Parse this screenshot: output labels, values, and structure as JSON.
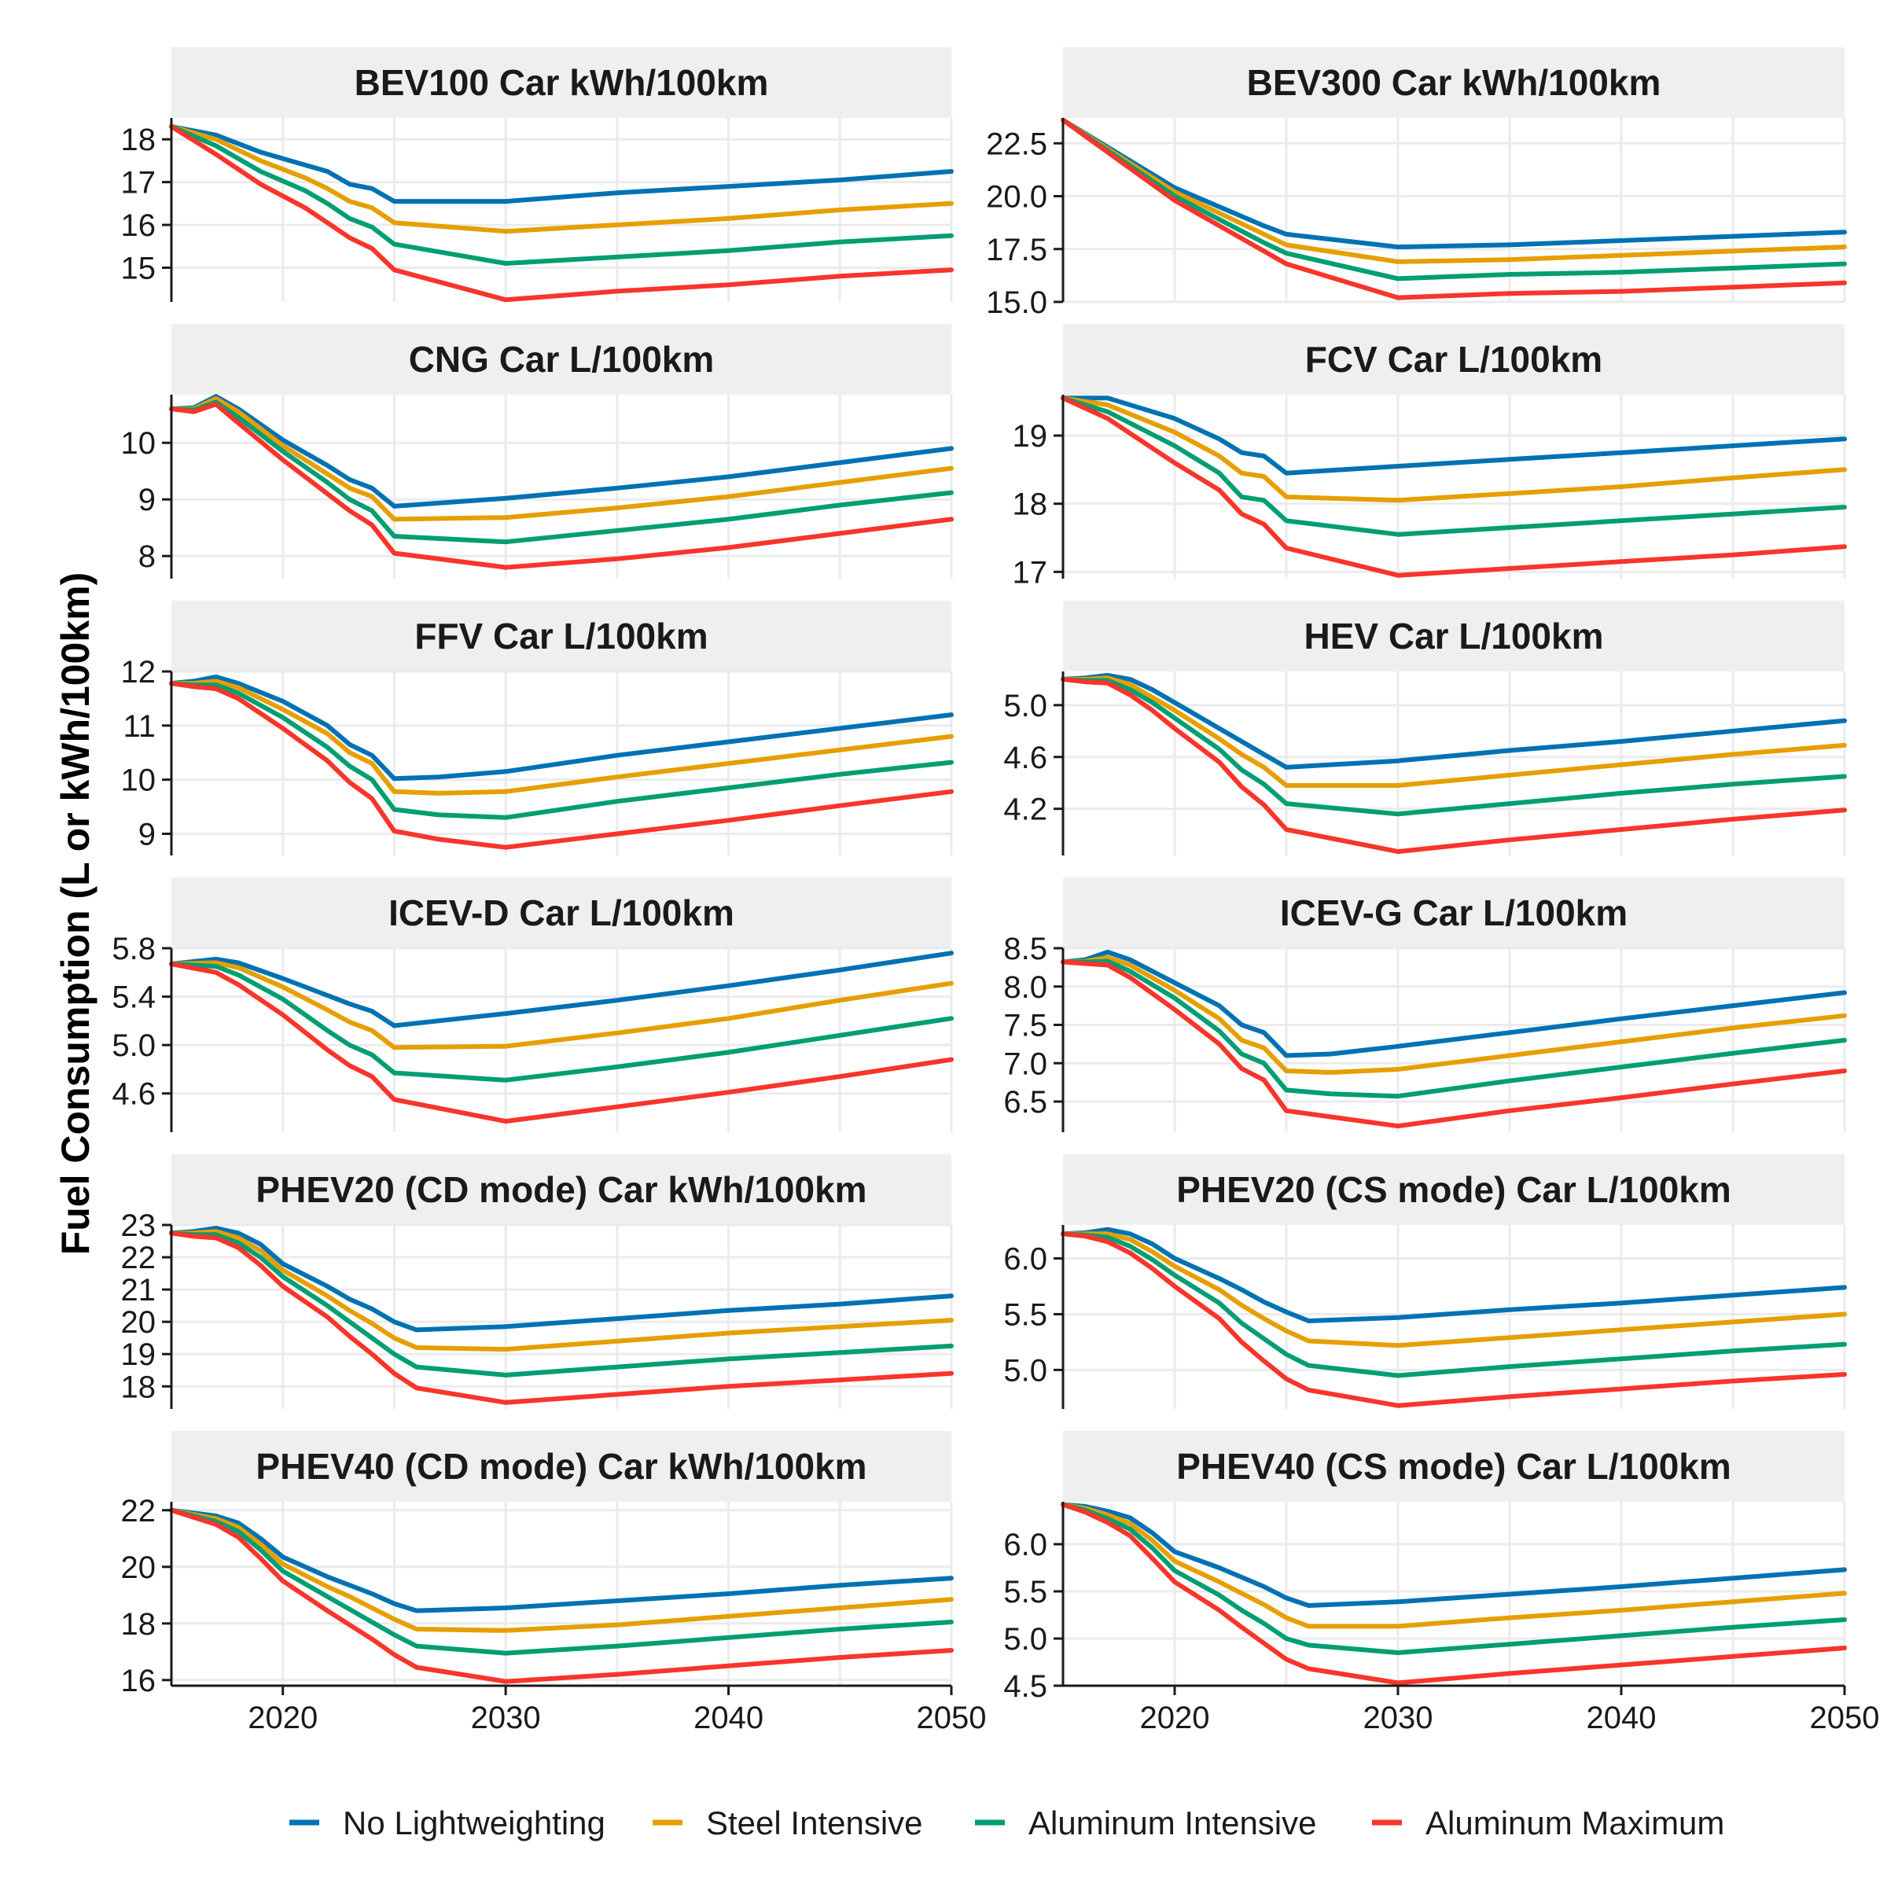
{
  "chart_data": {
    "type": "line",
    "ylabel": "Fuel Consumption (L or kWh/100km)",
    "xlim": [
      2015,
      2050
    ],
    "x_ticks": [
      2020,
      2030,
      2040,
      2050
    ],
    "grid": true,
    "legend_position": "bottom",
    "series": [
      {
        "name": "No Lightweighting",
        "color": "#0072B2"
      },
      {
        "name": "Steel Intensive",
        "color": "#E69F00"
      },
      {
        "name": "Aluminum Intensive",
        "color": "#009E73"
      },
      {
        "name": "Aluminum Maximum",
        "color": "#F8352B"
      }
    ],
    "panels": [
      {
        "title": "BEV100 Car kWh/100km",
        "ylim": [
          14.2,
          18.5
        ],
        "y_ticks": [
          15,
          16,
          17,
          18
        ],
        "x": [
          2015,
          2017,
          2019,
          2021,
          2022,
          2023,
          2024,
          2025,
          2030,
          2035,
          2040,
          2045,
          2050
        ],
        "values": [
          [
            18.3,
            18.1,
            17.7,
            17.4,
            17.25,
            16.95,
            16.85,
            16.55,
            16.55,
            16.75,
            16.9,
            17.05,
            17.25
          ],
          [
            18.3,
            18.0,
            17.5,
            17.1,
            16.85,
            16.55,
            16.4,
            16.05,
            15.85,
            16.0,
            16.15,
            16.35,
            16.5
          ],
          [
            18.3,
            17.85,
            17.25,
            16.8,
            16.5,
            16.15,
            15.95,
            15.55,
            15.1,
            15.25,
            15.4,
            15.6,
            15.75
          ],
          [
            18.3,
            17.65,
            16.95,
            16.4,
            16.05,
            15.7,
            15.45,
            14.95,
            14.25,
            14.45,
            14.6,
            14.8,
            14.95
          ]
        ]
      },
      {
        "title": "BEV300 Car kWh/100km",
        "ylim": [
          15.0,
          23.7
        ],
        "y_ticks": [
          15.0,
          17.5,
          20.0,
          22.5
        ],
        "x": [
          2015,
          2020,
          2024,
          2025,
          2030,
          2035,
          2040,
          2045,
          2050
        ],
        "values": [
          [
            23.6,
            20.4,
            18.6,
            18.2,
            17.6,
            17.7,
            17.9,
            18.1,
            18.3
          ],
          [
            23.6,
            20.2,
            18.2,
            17.7,
            16.9,
            17.0,
            17.2,
            17.4,
            17.6
          ],
          [
            23.6,
            20.0,
            17.8,
            17.3,
            16.1,
            16.3,
            16.4,
            16.6,
            16.8
          ],
          [
            23.6,
            19.8,
            17.4,
            16.8,
            15.2,
            15.4,
            15.5,
            15.7,
            15.9
          ]
        ]
      },
      {
        "title": "CNG Car L/100km",
        "ylim": [
          7.6,
          10.85
        ],
        "y_ticks": [
          8,
          9,
          10
        ],
        "x": [
          2015,
          2016,
          2017,
          2018,
          2020,
          2022,
          2023,
          2024,
          2025,
          2030,
          2035,
          2040,
          2045,
          2050
        ],
        "values": [
          [
            10.6,
            10.62,
            10.82,
            10.6,
            10.05,
            9.6,
            9.35,
            9.2,
            8.88,
            9.02,
            9.2,
            9.4,
            9.65,
            9.9
          ],
          [
            10.6,
            10.6,
            10.78,
            10.55,
            9.95,
            9.45,
            9.2,
            9.05,
            8.65,
            8.68,
            8.85,
            9.05,
            9.3,
            9.55
          ],
          [
            10.6,
            10.58,
            10.72,
            10.45,
            9.85,
            9.3,
            9.0,
            8.8,
            8.35,
            8.25,
            8.45,
            8.65,
            8.9,
            9.12
          ],
          [
            10.6,
            10.55,
            10.68,
            10.35,
            9.7,
            9.1,
            8.8,
            8.55,
            8.05,
            7.8,
            7.95,
            8.15,
            8.4,
            8.65
          ]
        ]
      },
      {
        "title": "FCV Car L/100km",
        "ylim": [
          16.9,
          19.6
        ],
        "y_ticks": [
          17,
          18,
          19
        ],
        "x": [
          2015,
          2017,
          2020,
          2022,
          2023,
          2024,
          2025,
          2030,
          2035,
          2040,
          2045,
          2050
        ],
        "values": [
          [
            19.55,
            19.55,
            19.25,
            18.95,
            18.75,
            18.7,
            18.45,
            18.55,
            18.65,
            18.75,
            18.85,
            18.95
          ],
          [
            19.55,
            19.45,
            19.05,
            18.7,
            18.45,
            18.4,
            18.1,
            18.05,
            18.15,
            18.25,
            18.38,
            18.5
          ],
          [
            19.55,
            19.35,
            18.85,
            18.45,
            18.1,
            18.05,
            17.75,
            17.55,
            17.65,
            17.75,
            17.85,
            17.95
          ],
          [
            19.55,
            19.25,
            18.6,
            18.2,
            17.85,
            17.7,
            17.35,
            16.95,
            17.05,
            17.15,
            17.25,
            17.37
          ]
        ]
      },
      {
        "title": "FFV Car L/100km",
        "ylim": [
          8.6,
          12.0
        ],
        "y_ticks": [
          9,
          10,
          11,
          12
        ],
        "x": [
          2015,
          2016,
          2017,
          2018,
          2020,
          2022,
          2023,
          2024,
          2025,
          2027,
          2030,
          2035,
          2040,
          2045,
          2050
        ],
        "values": [
          [
            11.78,
            11.82,
            11.9,
            11.78,
            11.45,
            11.0,
            10.65,
            10.45,
            10.02,
            10.05,
            10.15,
            10.45,
            10.7,
            10.95,
            11.2
          ],
          [
            11.78,
            11.78,
            11.82,
            11.7,
            11.3,
            10.85,
            10.5,
            10.3,
            9.78,
            9.75,
            9.78,
            10.05,
            10.3,
            10.55,
            10.8
          ],
          [
            11.78,
            11.75,
            11.75,
            11.6,
            11.15,
            10.6,
            10.25,
            10.0,
            9.45,
            9.35,
            9.3,
            9.6,
            9.85,
            10.1,
            10.32
          ],
          [
            11.78,
            11.72,
            11.68,
            11.5,
            10.95,
            10.35,
            9.95,
            9.65,
            9.05,
            8.9,
            8.75,
            9.0,
            9.25,
            9.52,
            9.78
          ]
        ]
      },
      {
        "title": "HEV Car L/100km",
        "ylim": [
          3.84,
          5.26
        ],
        "y_ticks": [
          4.2,
          4.6,
          5.0
        ],
        "x": [
          2015,
          2016,
          2017,
          2018,
          2019,
          2020,
          2022,
          2023,
          2024,
          2025,
          2030,
          2035,
          2040,
          2045,
          2050
        ],
        "values": [
          [
            5.2,
            5.21,
            5.23,
            5.2,
            5.12,
            5.02,
            4.82,
            4.72,
            4.62,
            4.52,
            4.57,
            4.65,
            4.72,
            4.8,
            4.88
          ],
          [
            5.2,
            5.2,
            5.21,
            5.16,
            5.06,
            4.96,
            4.74,
            4.62,
            4.52,
            4.38,
            4.38,
            4.46,
            4.54,
            4.62,
            4.69
          ],
          [
            5.2,
            5.19,
            5.19,
            5.12,
            5.02,
            4.9,
            4.66,
            4.5,
            4.39,
            4.24,
            4.16,
            4.24,
            4.32,
            4.39,
            4.45
          ],
          [
            5.2,
            5.18,
            5.17,
            5.08,
            4.96,
            4.82,
            4.56,
            4.37,
            4.23,
            4.04,
            3.87,
            3.96,
            4.04,
            4.12,
            4.19
          ]
        ]
      },
      {
        "title": "ICEV-D Car L/100km",
        "ylim": [
          4.28,
          5.8
        ],
        "y_ticks": [
          4.6,
          5.0,
          5.4,
          5.8
        ],
        "x": [
          2015,
          2017,
          2018,
          2020,
          2022,
          2023,
          2024,
          2025,
          2030,
          2035,
          2040,
          2045,
          2050
        ],
        "values": [
          [
            5.67,
            5.71,
            5.68,
            5.55,
            5.41,
            5.34,
            5.28,
            5.16,
            5.26,
            5.37,
            5.49,
            5.62,
            5.76
          ],
          [
            5.67,
            5.68,
            5.64,
            5.48,
            5.29,
            5.19,
            5.12,
            4.98,
            4.99,
            5.1,
            5.22,
            5.37,
            5.51
          ],
          [
            5.67,
            5.65,
            5.58,
            5.38,
            5.12,
            5.0,
            4.92,
            4.77,
            4.71,
            4.82,
            4.94,
            5.08,
            5.22
          ],
          [
            5.67,
            5.6,
            5.5,
            5.25,
            4.96,
            4.83,
            4.74,
            4.55,
            4.37,
            4.49,
            4.61,
            4.74,
            4.88
          ]
        ]
      },
      {
        "title": "ICEV-G Car L/100km",
        "ylim": [
          6.1,
          8.5
        ],
        "y_ticks": [
          6.5,
          7.0,
          7.5,
          8.0,
          8.5
        ],
        "x": [
          2015,
          2016,
          2017,
          2018,
          2020,
          2022,
          2023,
          2024,
          2025,
          2027,
          2030,
          2035,
          2040,
          2045,
          2050
        ],
        "values": [
          [
            8.32,
            8.35,
            8.45,
            8.35,
            8.05,
            7.75,
            7.5,
            7.4,
            7.1,
            7.12,
            7.22,
            7.4,
            7.58,
            7.75,
            7.92
          ],
          [
            8.32,
            8.33,
            8.38,
            8.28,
            7.95,
            7.58,
            7.3,
            7.2,
            6.9,
            6.88,
            6.92,
            7.1,
            7.28,
            7.46,
            7.62
          ],
          [
            8.32,
            8.32,
            8.33,
            8.2,
            7.85,
            7.42,
            7.12,
            7.0,
            6.65,
            6.6,
            6.57,
            6.77,
            6.95,
            7.13,
            7.3
          ],
          [
            8.32,
            8.3,
            8.28,
            8.12,
            7.7,
            7.25,
            6.93,
            6.78,
            6.38,
            6.3,
            6.18,
            6.38,
            6.55,
            6.73,
            6.9
          ]
        ]
      },
      {
        "title": "PHEV20 (CD mode) Car kWh/100km",
        "ylim": [
          17.3,
          23.0
        ],
        "y_ticks": [
          18,
          19,
          20,
          21,
          22,
          23
        ],
        "x": [
          2015,
          2016,
          2017,
          2018,
          2019,
          2020,
          2022,
          2023,
          2024,
          2025,
          2026,
          2030,
          2035,
          2040,
          2045,
          2050
        ],
        "values": [
          [
            22.75,
            22.8,
            22.9,
            22.75,
            22.4,
            21.8,
            21.1,
            20.7,
            20.4,
            20.0,
            19.75,
            19.85,
            20.1,
            20.35,
            20.55,
            20.8
          ],
          [
            22.75,
            22.75,
            22.8,
            22.6,
            22.2,
            21.6,
            20.8,
            20.35,
            19.95,
            19.5,
            19.2,
            19.15,
            19.4,
            19.65,
            19.85,
            20.05
          ],
          [
            22.75,
            22.7,
            22.7,
            22.45,
            22.0,
            21.4,
            20.5,
            20.0,
            19.5,
            19.0,
            18.6,
            18.35,
            18.6,
            18.85,
            19.05,
            19.25
          ],
          [
            22.75,
            22.65,
            22.6,
            22.3,
            21.75,
            21.1,
            20.15,
            19.55,
            19.0,
            18.4,
            17.95,
            17.5,
            17.75,
            18.0,
            18.2,
            18.4
          ]
        ]
      },
      {
        "title": "PHEV20 (CS mode) Car L/100km",
        "ylim": [
          4.65,
          6.3
        ],
        "y_ticks": [
          5.0,
          5.5,
          6.0
        ],
        "x": [
          2015,
          2016,
          2017,
          2018,
          2019,
          2020,
          2022,
          2023,
          2024,
          2025,
          2026,
          2030,
          2035,
          2040,
          2045,
          2050
        ],
        "values": [
          [
            6.22,
            6.23,
            6.26,
            6.22,
            6.13,
            6.0,
            5.82,
            5.72,
            5.61,
            5.52,
            5.44,
            5.47,
            5.54,
            5.6,
            5.67,
            5.74
          ],
          [
            6.22,
            6.22,
            6.22,
            6.17,
            6.06,
            5.93,
            5.72,
            5.58,
            5.46,
            5.35,
            5.26,
            5.22,
            5.29,
            5.36,
            5.43,
            5.5
          ],
          [
            6.22,
            6.21,
            6.19,
            6.11,
            5.99,
            5.85,
            5.6,
            5.42,
            5.28,
            5.14,
            5.04,
            4.95,
            5.03,
            5.1,
            5.17,
            5.23
          ],
          [
            6.22,
            6.2,
            6.15,
            6.05,
            5.91,
            5.75,
            5.46,
            5.25,
            5.08,
            4.92,
            4.82,
            4.68,
            4.76,
            4.83,
            4.9,
            4.96
          ]
        ]
      },
      {
        "title": "PHEV40 (CD mode) Car kWh/100km",
        "ylim": [
          15.8,
          22.3
        ],
        "y_ticks": [
          16,
          18,
          20,
          22
        ],
        "x": [
          2015,
          2017,
          2018,
          2019,
          2020,
          2022,
          2023,
          2024,
          2025,
          2026,
          2030,
          2035,
          2040,
          2045,
          2050
        ],
        "values": [
          [
            22.0,
            21.8,
            21.55,
            21.0,
            20.35,
            19.65,
            19.35,
            19.05,
            18.7,
            18.45,
            18.55,
            18.8,
            19.05,
            19.35,
            19.6
          ],
          [
            22.0,
            21.7,
            21.4,
            20.8,
            20.1,
            19.3,
            18.95,
            18.55,
            18.15,
            17.8,
            17.75,
            17.95,
            18.25,
            18.55,
            18.85
          ],
          [
            22.0,
            21.6,
            21.25,
            20.6,
            19.85,
            18.95,
            18.5,
            18.05,
            17.6,
            17.2,
            16.95,
            17.2,
            17.5,
            17.8,
            18.05
          ],
          [
            22.0,
            21.5,
            21.05,
            20.3,
            19.5,
            18.45,
            17.95,
            17.45,
            16.9,
            16.45,
            15.95,
            16.2,
            16.5,
            16.8,
            17.05
          ]
        ]
      },
      {
        "title": "PHEV40 (CS mode) Car L/100km",
        "ylim": [
          4.5,
          6.45
        ],
        "y_ticks": [
          4.5,
          5.0,
          5.5,
          6.0
        ],
        "x": [
          2015,
          2016,
          2017,
          2018,
          2019,
          2020,
          2022,
          2023,
          2024,
          2025,
          2026,
          2030,
          2035,
          2040,
          2045,
          2050
        ],
        "values": [
          [
            6.42,
            6.4,
            6.35,
            6.28,
            6.12,
            5.92,
            5.75,
            5.65,
            5.55,
            5.43,
            5.35,
            5.39,
            5.47,
            5.55,
            5.64,
            5.73
          ],
          [
            6.42,
            6.38,
            6.31,
            6.22,
            6.04,
            5.82,
            5.6,
            5.48,
            5.36,
            5.22,
            5.13,
            5.13,
            5.22,
            5.3,
            5.39,
            5.48
          ],
          [
            6.42,
            6.36,
            6.27,
            6.16,
            5.96,
            5.72,
            5.46,
            5.3,
            5.16,
            5.0,
            4.93,
            4.85,
            4.94,
            5.03,
            5.12,
            5.2
          ],
          [
            6.42,
            6.34,
            6.23,
            6.09,
            5.85,
            5.6,
            5.3,
            5.12,
            4.95,
            4.78,
            4.68,
            4.53,
            4.63,
            4.72,
            4.81,
            4.9
          ]
        ]
      }
    ]
  }
}
